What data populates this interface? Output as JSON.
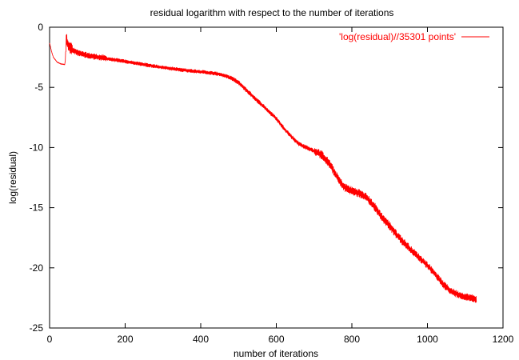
{
  "chart_data": {
    "type": "line",
    "title": "residual logarithm with respect to the number of iterations",
    "xlabel": "number of iterations",
    "ylabel": "log(residual)",
    "xlim": [
      0,
      1200
    ],
    "ylim": [
      -25,
      0
    ],
    "xticks": [
      0,
      200,
      400,
      600,
      800,
      1000,
      1200
    ],
    "yticks": [
      0,
      -5,
      -10,
      -15,
      -20,
      -25
    ],
    "xtick_labels": [
      "0",
      "200",
      "400",
      "600",
      "800",
      "1000",
      "1200"
    ],
    "ytick_labels": [
      "0",
      "-5",
      "-10",
      "-15",
      "-20",
      "-25"
    ],
    "grid": false,
    "legend_position": "top-right",
    "series": [
      {
        "name": "'log(residual)//35301 points'",
        "color": "#ff0000",
        "x": [
          0,
          5,
          10,
          20,
          30,
          40,
          42,
          44,
          50,
          60,
          80,
          100,
          150,
          200,
          250,
          300,
          350,
          400,
          450,
          480,
          500,
          520,
          540,
          560,
          580,
          600,
          620,
          640,
          660,
          680,
          700,
          720,
          740,
          760,
          770,
          780,
          800,
          820,
          840,
          860,
          880,
          900,
          920,
          940,
          960,
          980,
          1000,
          1020,
          1040,
          1060,
          1080,
          1100,
          1130
        ],
        "y": [
          -1.3,
          -2.0,
          -2.5,
          -2.9,
          -3.05,
          -3.1,
          -2.7,
          -1.0,
          -1.5,
          -1.9,
          -2.2,
          -2.35,
          -2.6,
          -2.85,
          -3.1,
          -3.35,
          -3.55,
          -3.7,
          -3.9,
          -4.2,
          -4.6,
          -5.2,
          -5.8,
          -6.4,
          -7.0,
          -7.6,
          -8.4,
          -9.1,
          -9.7,
          -10.0,
          -10.3,
          -10.6,
          -11.3,
          -12.4,
          -12.9,
          -13.3,
          -13.6,
          -13.8,
          -14.2,
          -14.9,
          -15.8,
          -16.5,
          -17.3,
          -18.0,
          -18.6,
          -19.2,
          -19.8,
          -20.5,
          -21.3,
          -21.9,
          -22.2,
          -22.4,
          -22.6
        ]
      }
    ]
  }
}
